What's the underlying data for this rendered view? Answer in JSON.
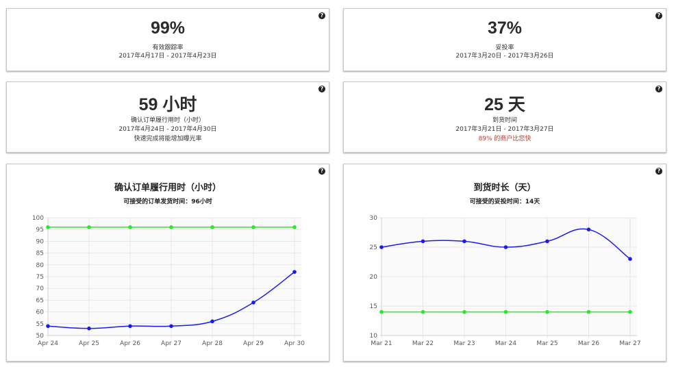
{
  "stats": {
    "tracking": {
      "value": "99%",
      "label": "有效跟踪率",
      "range": "2017年4月17日 - 2017年4月23日"
    },
    "delivery_rate": {
      "value": "37%",
      "label": "妥投率",
      "range": "2017年3月20日 - 2017年3月26日"
    },
    "confirm_time": {
      "value": "59 小时",
      "label": "确认订单履行用时（小时）",
      "range": "2017年4月24日 - 2017年4月30日",
      "note": "快速完成将能增加曝光率"
    },
    "arrival_time": {
      "value": "25 天",
      "label": "到货时间",
      "range": "2017年3月21日 - 2017年3月27日",
      "note": "89% 的商户比您快"
    }
  },
  "help_icon": "?",
  "chart_data": [
    {
      "type": "line",
      "title": "确认订单履行用时（小时）",
      "subtitle": "可接受的订单发货时间：96小时",
      "categories": [
        "Apr 24",
        "Apr 25",
        "Apr 26",
        "Apr 27",
        "Apr 28",
        "Apr 29",
        "Apr 30"
      ],
      "ylim": [
        50,
        100
      ],
      "yticks": [
        "50",
        "55",
        "60",
        "65",
        "70",
        "75",
        "80",
        "85",
        "90",
        "95",
        "100"
      ],
      "grid": true,
      "series": [
        {
          "values": [
            54,
            53,
            54,
            54,
            56,
            64,
            77
          ],
          "color": "#1a1aee",
          "smooth": true
        },
        {
          "values": [
            96,
            96,
            96,
            96,
            96,
            96,
            96
          ],
          "color": "#22ee22",
          "smooth": false
        }
      ]
    },
    {
      "type": "line",
      "title": "到货时长（天）",
      "subtitle": "可接受的妥投时间：14天",
      "categories": [
        "Mar 21",
        "Mar 22",
        "Mar 23",
        "Mar 24",
        "Mar 25",
        "Mar 26",
        "Mar 27"
      ],
      "ylim": [
        10,
        30
      ],
      "yticks": [
        "10",
        "15",
        "20",
        "25",
        "30"
      ],
      "grid": true,
      "series": [
        {
          "values": [
            25,
            26,
            26,
            25,
            26,
            28,
            23
          ],
          "color": "#1a1aee",
          "smooth": true
        },
        {
          "values": [
            14,
            14,
            14,
            14,
            14,
            14,
            14
          ],
          "color": "#22ee22",
          "smooth": false
        }
      ]
    }
  ]
}
